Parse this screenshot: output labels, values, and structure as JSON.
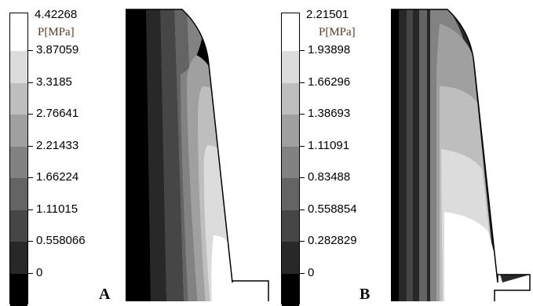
{
  "panels": [
    {
      "letter": "A",
      "unit": "P[MPa]",
      "max_label": "4.42268",
      "labels": [
        "3.87059",
        "3.3185",
        "2.76641",
        "2.21433",
        "1.66224",
        "1.11015",
        "0.558066",
        "0"
      ]
    },
    {
      "letter": "B",
      "unit": "P[MPa]",
      "max_label": "2.21501",
      "labels": [
        "1.93898",
        "1.66296",
        "1.38693",
        "1.11091",
        "0.83488",
        "0.558854",
        "0.282829",
        "0"
      ]
    }
  ],
  "colors": {
    "levels": [
      "#ffffff",
      "#dcdcdc",
      "#bebebe",
      "#a0a0a0",
      "#828282",
      "#646464",
      "#464646",
      "#282828",
      "#000000"
    ],
    "outline": "#000000",
    "unit_label": "#5a3a22"
  }
}
